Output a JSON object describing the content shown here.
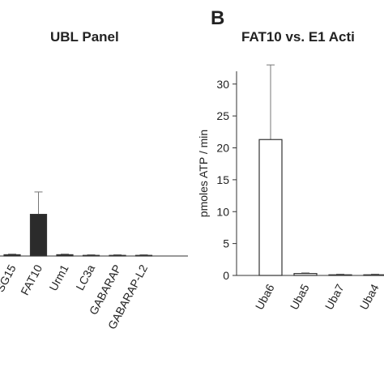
{
  "chart_data": [
    {
      "type": "bar",
      "title": "UBL Panel",
      "categories": [
        "SG15",
        "FAT10",
        "Urm1",
        "LC3a",
        "GABARAP",
        "GABARAP-L2"
      ],
      "values": [
        0.2,
        6.5,
        0.2,
        0.1,
        0.1,
        0.1
      ],
      "errors": [
        0.1,
        3.5,
        0.1,
        0.1,
        0.1,
        0.1
      ],
      "color": "#2b2b2b",
      "ylim": [
        0,
        32
      ]
    },
    {
      "type": "bar",
      "panel_label": "B",
      "title": "FAT10 vs. E1 Acti",
      "y_label": "pmoles ATP / min",
      "categories": [
        "Uba6",
        "Uba5",
        "Uba7",
        "Uba4"
      ],
      "values": [
        21.3,
        0.3,
        0.1,
        0.1
      ],
      "errors": [
        11.7,
        0.1,
        0.1,
        0.1
      ],
      "color": "#ffffff",
      "ylim": [
        0,
        32
      ],
      "yticks": [
        0,
        5,
        10,
        15,
        20,
        25,
        30
      ]
    }
  ]
}
